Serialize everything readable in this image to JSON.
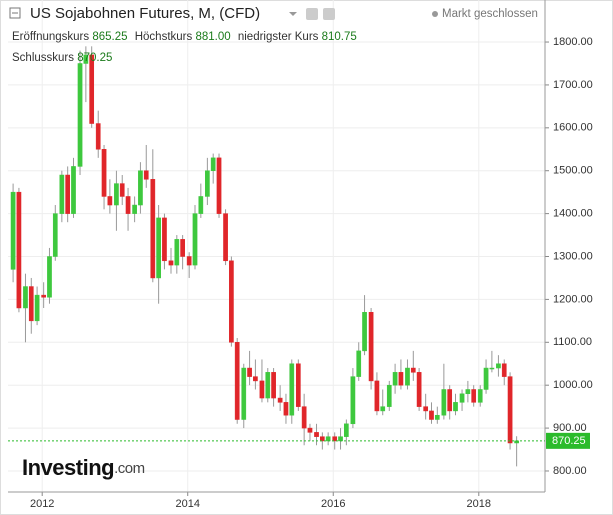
{
  "chart_data": {
    "type": "candlestick",
    "title": "US Sojabohnen Futures, M, (CFD)",
    "status": "Markt geschlossen",
    "info": [
      {
        "name": "Eröffnungskurs",
        "value": "865.25"
      },
      {
        "name": "Höchstkurs",
        "value": "881.00"
      },
      {
        "name": "niedrigster Kurs",
        "value": "810.75"
      },
      {
        "name": "Schlusskurs",
        "value": "870.25"
      }
    ],
    "logo_main": "Investing",
    "logo_suffix": ".com",
    "up_color": "#3ec83e",
    "down_color": "#e0262a",
    "last_color": "#2bbb2b",
    "grid": true,
    "xlim": [
      2011.53,
      2018.91
    ],
    "xticks": [
      2012,
      2014,
      2016,
      2018
    ],
    "ylim": [
      751,
      1898
    ],
    "yticks": [
      {
        "value": 800,
        "label": "800.00"
      },
      {
        "value": 900,
        "label": "900.00"
      },
      {
        "value": 1000,
        "label": "1000.00"
      },
      {
        "value": 1100,
        "label": "1100.00"
      },
      {
        "value": 1200,
        "label": "1200.00"
      },
      {
        "value": 1300,
        "label": "1300.00"
      },
      {
        "value": 1400,
        "label": "1400.00"
      },
      {
        "value": 1500,
        "label": "1500.00"
      },
      {
        "value": 1600,
        "label": "1600.00"
      },
      {
        "value": 1700,
        "label": "1700.00"
      },
      {
        "value": 1800,
        "label": "1800.00"
      }
    ],
    "x": [
      2011.6,
      2011.68,
      2011.77,
      2011.85,
      2011.93,
      2012.02,
      2012.1,
      2012.18,
      2012.27,
      2012.35,
      2012.43,
      2012.52,
      2012.6,
      2012.68,
      2012.77,
      2012.85,
      2012.93,
      2013.02,
      2013.1,
      2013.18,
      2013.27,
      2013.35,
      2013.43,
      2013.52,
      2013.6,
      2013.68,
      2013.77,
      2013.85,
      2013.93,
      2014.02,
      2014.1,
      2014.18,
      2014.27,
      2014.35,
      2014.43,
      2014.52,
      2014.6,
      2014.68,
      2014.77,
      2014.85,
      2014.93,
      2015.02,
      2015.1,
      2015.18,
      2015.27,
      2015.35,
      2015.43,
      2015.52,
      2015.6,
      2015.68,
      2015.77,
      2015.85,
      2015.93,
      2016.02,
      2016.1,
      2016.18,
      2016.27,
      2016.35,
      2016.43,
      2016.52,
      2016.6,
      2016.68,
      2016.77,
      2016.85,
      2016.93,
      2017.02,
      2017.1,
      2017.18,
      2017.27,
      2017.35,
      2017.43,
      2017.52,
      2017.6,
      2017.68,
      2017.77,
      2017.85,
      2017.93,
      2018.02,
      2018.1,
      2018.18,
      2018.27,
      2018.35,
      2018.43,
      2018.52
    ],
    "open": [
      1270,
      1450,
      1180,
      1230,
      1150,
      1210,
      1205,
      1300,
      1400,
      1490,
      1400,
      1510,
      1750,
      1770,
      1610,
      1550,
      1440,
      1420,
      1470,
      1440,
      1400,
      1420,
      1500,
      1480,
      1250,
      1390,
      1290,
      1280,
      1340,
      1300,
      1280,
      1400,
      1440,
      1500,
      1530,
      1400,
      1290,
      1100,
      920,
      1040,
      1020,
      1010,
      970,
      1030,
      970,
      960,
      930,
      1050,
      950,
      900,
      890,
      880,
      870,
      880,
      870,
      880,
      910,
      1020,
      1080,
      1170,
      1010,
      940,
      950,
      1000,
      1030,
      1000,
      1040,
      1030,
      950,
      940,
      920,
      930,
      990,
      940,
      960,
      980,
      990,
      960,
      990,
      1040,
      1040,
      1050,
      1020,
      865.25
    ],
    "high": [
      1470,
      1460,
      1260,
      1250,
      1230,
      1240,
      1320,
      1420,
      1500,
      1510,
      1530,
      1780,
      1790,
      1790,
      1640,
      1560,
      1480,
      1500,
      1490,
      1460,
      1440,
      1520,
      1560,
      1550,
      1420,
      1400,
      1320,
      1350,
      1350,
      1310,
      1420,
      1470,
      1530,
      1540,
      1540,
      1410,
      1300,
      1110,
      1050,
      1080,
      1060,
      1060,
      1040,
      1040,
      1000,
      980,
      1060,
      1060,
      980,
      910,
      910,
      890,
      890,
      890,
      900,
      920,
      1040,
      1100,
      1210,
      1180,
      1030,
      990,
      1010,
      1050,
      1060,
      1060,
      1080,
      1040,
      980,
      960,
      950,
      1050,
      1000,
      980,
      990,
      1010,
      1000,
      1000,
      1060,
      1080,
      1070,
      1060,
      1030,
      881
    ],
    "low": [
      1240,
      1170,
      1100,
      1120,
      1140,
      1180,
      1190,
      1290,
      1380,
      1380,
      1390,
      1490,
      1660,
      1600,
      1530,
      1410,
      1400,
      1360,
      1420,
      1360,
      1380,
      1400,
      1460,
      1240,
      1190,
      1270,
      1260,
      1260,
      1270,
      1250,
      1270,
      1390,
      1420,
      1470,
      1390,
      1280,
      1090,
      910,
      900,
      1000,
      990,
      960,
      960,
      950,
      940,
      910,
      910,
      940,
      860,
      870,
      860,
      850,
      860,
      850,
      850,
      860,
      900,
      1010,
      1070,
      990,
      930,
      930,
      940,
      980,
      990,
      990,
      1010,
      940,
      920,
      910,
      910,
      920,
      920,
      930,
      940,
      960,
      950,
      950,
      980,
      1030,
      1020,
      1000,
      850,
      810.75
    ],
    "close": [
      1450,
      1180,
      1230,
      1150,
      1210,
      1205,
      1300,
      1400,
      1490,
      1400,
      1510,
      1750,
      1770,
      1610,
      1550,
      1440,
      1420,
      1470,
      1440,
      1400,
      1420,
      1500,
      1480,
      1250,
      1390,
      1290,
      1280,
      1340,
      1300,
      1280,
      1400,
      1440,
      1500,
      1530,
      1400,
      1290,
      1100,
      920,
      1040,
      1020,
      1010,
      970,
      1030,
      970,
      960,
      930,
      1050,
      950,
      900,
      890,
      880,
      870,
      880,
      870,
      880,
      910,
      1020,
      1080,
      1170,
      1010,
      940,
      950,
      1000,
      1030,
      1000,
      1040,
      1030,
      950,
      940,
      920,
      930,
      990,
      940,
      960,
      980,
      990,
      960,
      990,
      1040,
      1040,
      1050,
      1020,
      865.25,
      870.25
    ]
  }
}
